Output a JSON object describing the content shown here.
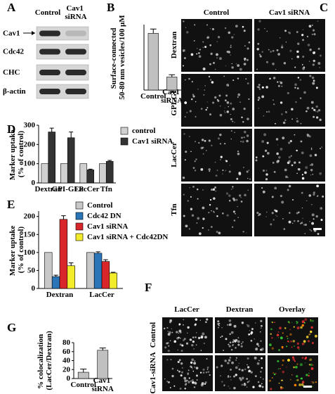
{
  "chart_data": [
    {
      "type": "bar",
      "panel": "B",
      "ylabel": "Surface-connected\n50-80 nm vesicles/100 μM",
      "categories": [
        "Control",
        "Cav1\nsiRNA"
      ],
      "values": [
        39,
        9
      ],
      "errors": [
        3,
        1.5
      ],
      "color": "#c0c0c0",
      "ylim": [
        0,
        45
      ]
    },
    {
      "type": "bar",
      "panel": "D",
      "ylabel": "Marker uptake\n(% of control)",
      "categories": [
        "Dextran",
        "GPI-GFP",
        "LacCer",
        "Tfn"
      ],
      "series": [
        {
          "name": "control",
          "color": "#d0d0d0",
          "values": [
            100,
            100,
            100,
            100
          ],
          "errors": [
            0,
            0,
            0,
            0
          ]
        },
        {
          "name": "Cav1 siRNA",
          "color": "#333333",
          "values": [
            265,
            235,
            68,
            112
          ],
          "errors": [
            20,
            30,
            4,
            5
          ]
        }
      ],
      "ylim": [
        0,
        300
      ],
      "yticks": [
        0,
        100,
        200,
        300
      ],
      "legend": "upper right"
    },
    {
      "type": "bar",
      "panel": "E",
      "ylabel": "Marker uptake\n(% of control)",
      "categories": [
        "Dextran",
        "LacCer"
      ],
      "series": [
        {
          "name": "Control",
          "color": "#c8c8c8",
          "values": [
            100,
            100
          ],
          "errors": [
            0,
            0
          ]
        },
        {
          "name": "Cdc42 DN",
          "color": "#2a74b8",
          "values": [
            33,
            98
          ],
          "errors": [
            4,
            4
          ]
        },
        {
          "name": "Cav1 siRNA",
          "color": "#d9262b",
          "values": [
            192,
            75
          ],
          "errors": [
            10,
            5
          ]
        },
        {
          "name": "Cav1 siRNA + Cdc42DN",
          "color": "#f2ec2a",
          "values": [
            63,
            43
          ],
          "errors": [
            8,
            2
          ]
        }
      ],
      "ylim": [
        0,
        215
      ],
      "yticks": [
        0,
        50,
        100,
        150,
        200
      ],
      "legend": "upper right"
    },
    {
      "type": "bar",
      "panel": "G",
      "ylabel": "% colocalization\n(LacCer/Dextran)",
      "categories": [
        "Control",
        "Cav1\nsiRNA"
      ],
      "values": [
        14,
        63
      ],
      "errors": [
        7,
        5
      ],
      "color": "#c0c0c0",
      "ylim": [
        0,
        80
      ],
      "yticks": [
        0,
        20,
        40,
        60,
        80
      ]
    }
  ],
  "blot": {
    "panel": "A",
    "columns": [
      "Control",
      "Cav1\nsiRNA"
    ],
    "rows": [
      "Cav1",
      "Cdc42",
      "CHC",
      "β-actin"
    ]
  },
  "imaging_c": {
    "panel": "C",
    "columns": [
      "Control",
      "Cav1 siRNA"
    ],
    "rows": [
      "Dextran",
      "GPI-GFP",
      "LacCer",
      "Tfn"
    ]
  },
  "imaging_f": {
    "panel": "F",
    "columns": [
      "LacCer",
      "Dextran",
      "Overlay"
    ],
    "rows": [
      "Control",
      "Cav1-siRNA"
    ]
  }
}
